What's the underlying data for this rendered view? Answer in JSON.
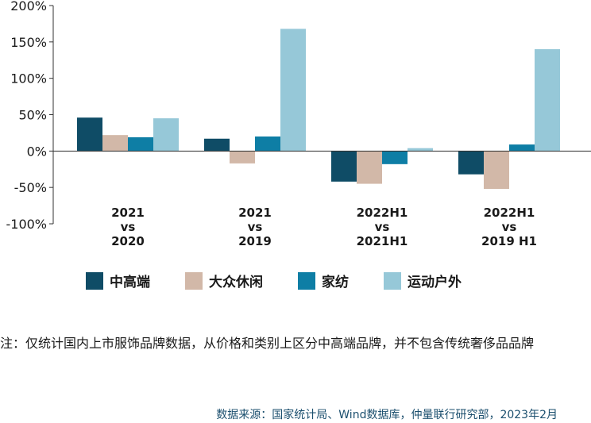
{
  "chart_data": {
    "type": "bar",
    "categories": [
      "2021\nvs\n2020",
      "2021\nvs\n2019",
      "2022H1\nvs\n2021H1",
      "2022H1\nvs\n2019 H1"
    ],
    "series": [
      {
        "name": "中高端",
        "color": "#0f4c66",
        "values": [
          46,
          17,
          -42,
          -32
        ]
      },
      {
        "name": "大众休闲",
        "color": "#d2b8a8",
        "values": [
          22,
          -17,
          -45,
          -52
        ]
      },
      {
        "name": "家纺",
        "color": "#0e7ea5",
        "values": [
          19,
          20,
          -18,
          9
        ]
      },
      {
        "name": "运动户外",
        "color": "#96c8d8",
        "values": [
          45,
          168,
          4,
          140
        ]
      }
    ],
    "ylim": [
      -100,
      200
    ],
    "yticks": [
      -100,
      -50,
      0,
      50,
      100,
      150,
      200
    ],
    "ytick_labels": [
      "-100%",
      "-50%",
      "0%",
      "50%",
      "100%",
      "150%",
      "200%"
    ],
    "legend_position": "bottom",
    "grid": false,
    "title": "",
    "xlabel": "",
    "ylabel": ""
  },
  "note": "注：仅统计国内上市服饰品牌数据，从价格和类别上区分中高端品牌，并不包含传统奢侈品品牌",
  "source": "数据来源：国家统计局、Wind数据库，仲量联行研究部，2023年2月"
}
